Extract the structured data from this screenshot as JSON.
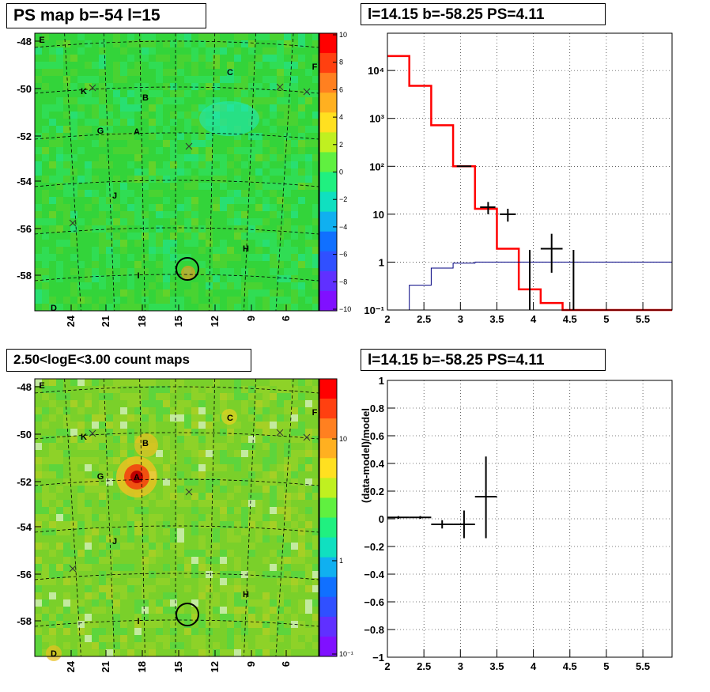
{
  "panels": {
    "ps_map": {
      "title": "PS map b=-54 l=15",
      "y_ticks": [
        "-48",
        "-50",
        "-52",
        "-54",
        "-56",
        "-58"
      ],
      "x_ticks": [
        "24",
        "21",
        "18",
        "15",
        "12",
        "9",
        "6"
      ],
      "colorbar_ticks": [
        "10",
        "8",
        "6",
        "4",
        "2",
        "0",
        "−2",
        "−4",
        "−6",
        "−8",
        "−10"
      ],
      "source_labels": [
        "E",
        "C",
        "F",
        "K",
        "B",
        "G",
        "A",
        "J",
        "H",
        "I",
        "D"
      ],
      "accent_color": "#33d43a"
    },
    "count_map": {
      "title": "2.50<logE<3.00 count maps",
      "y_ticks": [
        "-48",
        "-50",
        "-52",
        "-54",
        "-56",
        "-58"
      ],
      "x_ticks": [
        "24",
        "21",
        "18",
        "15",
        "12",
        "9",
        "6"
      ],
      "colorbar_ticks": [
        "10",
        "1",
        "10⁻¹"
      ],
      "source_labels": [
        "E",
        "C",
        "F",
        "K",
        "B",
        "G",
        "A",
        "J",
        "H",
        "I",
        "D"
      ],
      "accent_color": "#7ad02a"
    },
    "spectrum": {
      "title": "l=14.15 b=-58.25 PS=4.11"
    },
    "residual": {
      "title": "l=14.15 b=-58.25 PS=4.11"
    }
  },
  "chart_data": [
    {
      "type": "step",
      "title": "l=14.15 b=-58.25 PS=4.11",
      "xlabel": "",
      "ylabel": "",
      "xlim": [
        2,
        5.9
      ],
      "ylim": [
        0.1,
        60000
      ],
      "y_scale": "log",
      "grid": true,
      "x_ticks": [
        2,
        2.5,
        3,
        3.5,
        4,
        4.5,
        5,
        5.5
      ],
      "y_ticks": [
        {
          "value": 0.1,
          "label": "10⁻¹"
        },
        {
          "value": 1,
          "label": "1"
        },
        {
          "value": 10,
          "label": "10"
        },
        {
          "value": 100,
          "label": "10²"
        },
        {
          "value": 1000,
          "label": "10³"
        },
        {
          "value": 10000,
          "label": "10⁴"
        }
      ],
      "series": [
        {
          "color": "#ff0000",
          "edges": [
            2.0,
            2.3,
            2.6,
            2.9,
            3.2,
            3.5,
            3.8,
            4.1,
            4.4,
            5.9
          ],
          "values": [
            20000,
            4800,
            720,
            100,
            13,
            1.9,
            0.27,
            0.14,
            0.1
          ]
        },
        {
          "color": "#000080",
          "edges": [
            2.0,
            2.3,
            2.6,
            2.9,
            3.2,
            3.5,
            3.8,
            4.1,
            4.4,
            5.9
          ],
          "values": [
            0.1,
            0.33,
            0.75,
            0.95,
            1.0,
            1.0,
            1.0,
            1.0,
            1.0
          ]
        }
      ],
      "points": [
        {
          "x": 3.05,
          "xlo": 2.95,
          "xhi": 3.15,
          "y": 100,
          "ylo": 98,
          "yhi": 102
        },
        {
          "x": 3.38,
          "xlo": 3.27,
          "xhi": 3.48,
          "y": 14,
          "ylo": 10,
          "yhi": 18
        },
        {
          "x": 3.65,
          "xlo": 3.54,
          "xhi": 3.76,
          "y": 10,
          "ylo": 7,
          "yhi": 13
        },
        {
          "x": 3.95,
          "xlo": 3.95,
          "xhi": 3.95,
          "y": 1.0,
          "ylo": 0.1,
          "yhi": 1.8
        },
        {
          "x": 4.25,
          "xlo": 4.1,
          "xhi": 4.4,
          "y": 1.9,
          "ylo": 0.6,
          "yhi": 3.9
        },
        {
          "x": 4.55,
          "xlo": 4.55,
          "xhi": 4.55,
          "y": 1.0,
          "ylo": 0.1,
          "yhi": 1.8
        }
      ]
    },
    {
      "type": "scatter",
      "title": "l=14.15 b=-58.25 PS=4.11",
      "xlabel": "",
      "ylabel": "(data-model)/model",
      "xlim": [
        2,
        5.9
      ],
      "ylim": [
        -1,
        1
      ],
      "grid": true,
      "x_ticks": [
        2,
        2.5,
        3,
        3.5,
        4,
        4.5,
        5,
        5.5
      ],
      "y_ticks": [
        -1,
        -0.8,
        -0.6,
        -0.4,
        -0.2,
        0,
        0.2,
        0.4,
        0.6,
        0.8,
        1
      ],
      "points": [
        {
          "x": 2.15,
          "xlo": 2.0,
          "xhi": 2.3,
          "y": 0.01,
          "ylo": 0.0,
          "yhi": 0.02
        },
        {
          "x": 2.45,
          "xlo": 2.3,
          "xhi": 2.6,
          "y": 0.01,
          "ylo": 0.0,
          "yhi": 0.02
        },
        {
          "x": 2.75,
          "xlo": 2.6,
          "xhi": 2.9,
          "y": -0.04,
          "ylo": -0.07,
          "yhi": -0.01
        },
        {
          "x": 3.05,
          "xlo": 2.9,
          "xhi": 3.2,
          "y": -0.04,
          "ylo": -0.14,
          "yhi": 0.06
        },
        {
          "x": 3.35,
          "xlo": 3.2,
          "xhi": 3.5,
          "y": 0.16,
          "ylo": -0.14,
          "yhi": 0.45
        }
      ]
    }
  ]
}
